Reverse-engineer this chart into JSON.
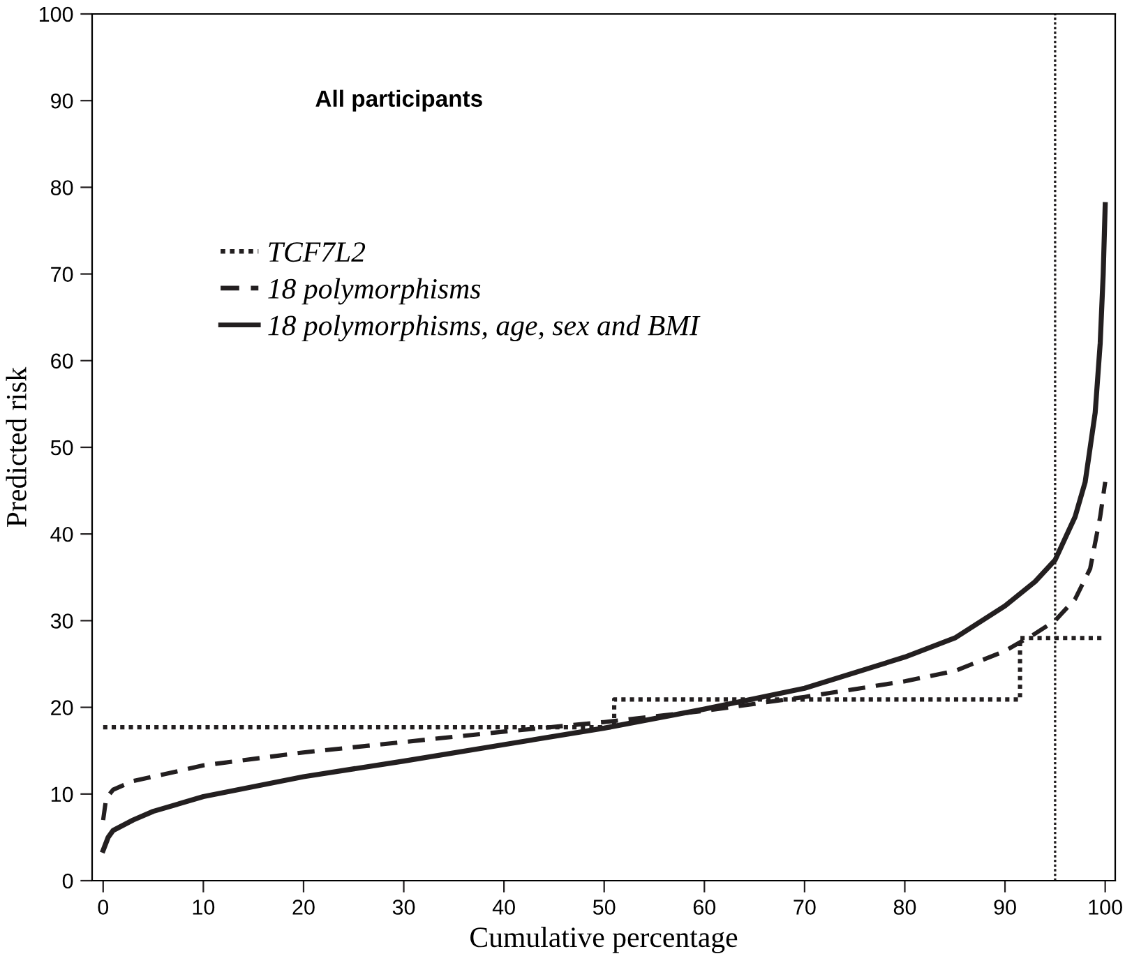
{
  "chart_data": {
    "type": "line",
    "title": "All participants",
    "xlabel": "Cumulative percentage",
    "ylabel": "Predicted risk",
    "xlim": [
      -1.1,
      101
    ],
    "ylim": [
      0,
      100
    ],
    "xticks": [
      0,
      10,
      20,
      30,
      40,
      50,
      60,
      70,
      80,
      90,
      100
    ],
    "yticks": [
      0,
      10,
      20,
      30,
      40,
      50,
      60,
      70,
      80,
      90,
      100
    ],
    "grid": false,
    "legend": "left",
    "ref_lines": [
      {
        "axis": "x",
        "value": 95,
        "color": "#231f20",
        "line_style": "dotted"
      }
    ],
    "series": [
      {
        "name": "TCF7L2",
        "type": "step",
        "color": "#231f20",
        "line_style": "dotted",
        "x": [
          0,
          51,
          91.5,
          100
        ],
        "values": [
          17.7,
          20.9,
          28,
          28
        ]
      },
      {
        "name": "18 polymorphisms",
        "color": "#231f20",
        "line_style": "dashed",
        "x": [
          0,
          0.3,
          1,
          3,
          5,
          10,
          20,
          30,
          40,
          50,
          60,
          70,
          80,
          85,
          90,
          93,
          95,
          97,
          98.5,
          99.5,
          100
        ],
        "values": [
          7,
          9.5,
          10.5,
          11.5,
          12,
          13.3,
          14.8,
          16,
          17.2,
          18.3,
          19.6,
          21.2,
          23,
          24.2,
          26.5,
          28.5,
          30,
          32.5,
          36,
          42,
          46
        ]
      },
      {
        "name": "18 polymorphisms, age, sex and BMI",
        "color": "#231f20",
        "line_style": "solid",
        "x": [
          0,
          0.5,
          1,
          3,
          5,
          10,
          20,
          30,
          40,
          50,
          60,
          70,
          80,
          85,
          90,
          93,
          95,
          97,
          98,
          99,
          99.5,
          99.8,
          100
        ],
        "values": [
          3.5,
          5,
          5.8,
          7,
          8,
          9.7,
          12,
          13.8,
          15.7,
          17.6,
          19.8,
          22.2,
          25.8,
          28,
          31.7,
          34.5,
          37,
          42,
          46,
          54,
          62,
          70,
          78
        ]
      }
    ]
  }
}
